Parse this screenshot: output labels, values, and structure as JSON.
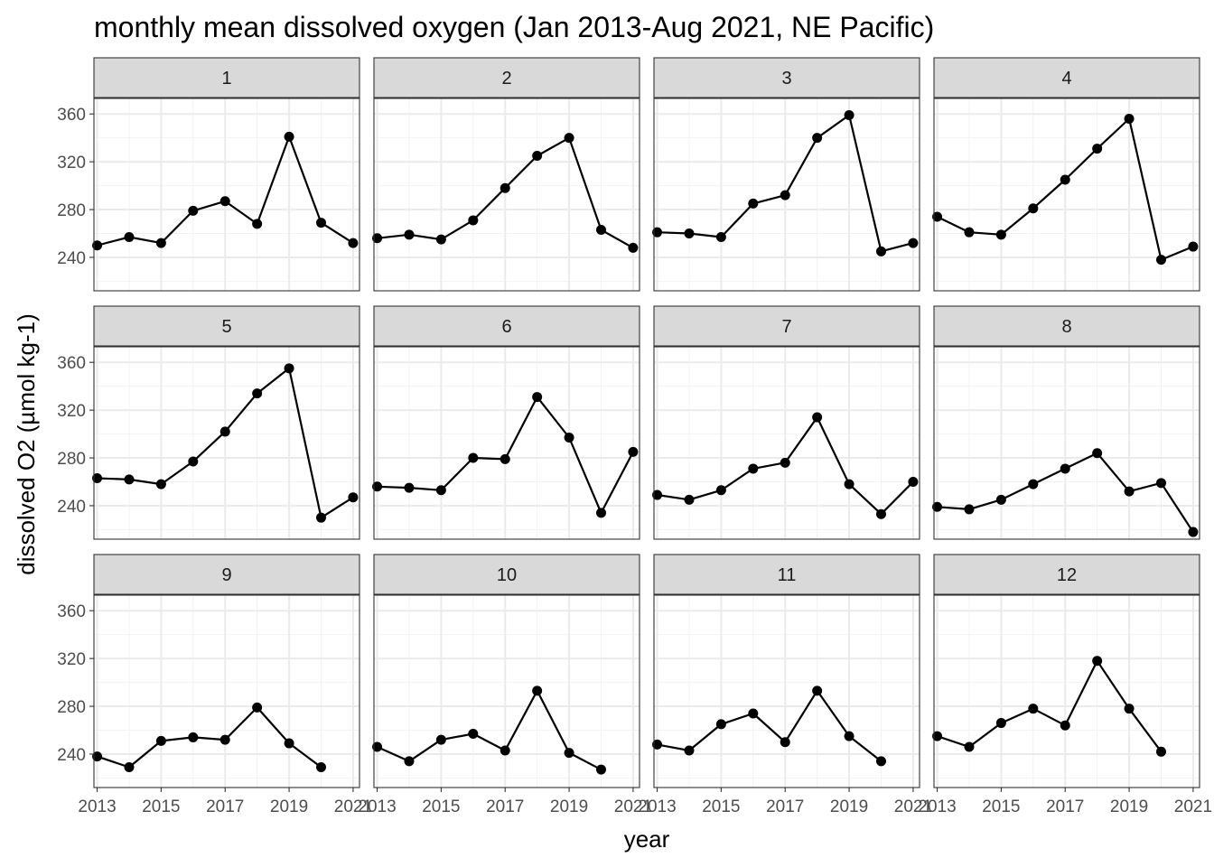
{
  "chart_data": {
    "type": "line",
    "title": "monthly mean dissolved oxygen (Jan 2013-Aug 2021, NE Pacific)",
    "xlabel": "year",
    "ylabel": "dissolved O2 (µmol kg-1)",
    "x_ticks": [
      2013,
      2015,
      2017,
      2019,
      2021
    ],
    "y_ticks": [
      240,
      280,
      320,
      360
    ],
    "xlim": [
      2012.9,
      2021.2
    ],
    "ylim": [
      212,
      373
    ],
    "grid": true,
    "markers": true,
    "color": "#000000",
    "panels": [
      {
        "facet": "1",
        "x": [
          2013,
          2014,
          2015,
          2016,
          2017,
          2018,
          2019,
          2020,
          2021
        ],
        "y": [
          250,
          257,
          252,
          279,
          287,
          268,
          341,
          269,
          252
        ]
      },
      {
        "facet": "2",
        "x": [
          2013,
          2014,
          2015,
          2016,
          2017,
          2018,
          2019,
          2020,
          2021
        ],
        "y": [
          256,
          259,
          255,
          271,
          298,
          325,
          340,
          263,
          248
        ]
      },
      {
        "facet": "3",
        "x": [
          2013,
          2014,
          2015,
          2016,
          2017,
          2018,
          2019,
          2020,
          2021
        ],
        "y": [
          261,
          260,
          257,
          285,
          292,
          340,
          359,
          245,
          252
        ]
      },
      {
        "facet": "4",
        "x": [
          2013,
          2014,
          2015,
          2016,
          2017,
          2018,
          2019,
          2020,
          2021
        ],
        "y": [
          274,
          261,
          259,
          281,
          305,
          331,
          356,
          238,
          249
        ]
      },
      {
        "facet": "5",
        "x": [
          2013,
          2014,
          2015,
          2016,
          2017,
          2018,
          2019,
          2020,
          2021
        ],
        "y": [
          263,
          262,
          258,
          277,
          302,
          334,
          355,
          230,
          247
        ]
      },
      {
        "facet": "6",
        "x": [
          2013,
          2014,
          2015,
          2016,
          2017,
          2018,
          2019,
          2020,
          2021
        ],
        "y": [
          256,
          255,
          253,
          280,
          279,
          331,
          297,
          234,
          285
        ]
      },
      {
        "facet": "7",
        "x": [
          2013,
          2014,
          2015,
          2016,
          2017,
          2018,
          2019,
          2020,
          2021
        ],
        "y": [
          249,
          245,
          253,
          271,
          276,
          314,
          258,
          233,
          260
        ]
      },
      {
        "facet": "8",
        "x": [
          2013,
          2014,
          2015,
          2016,
          2017,
          2018,
          2019,
          2020,
          2021
        ],
        "y": [
          239,
          237,
          245,
          258,
          271,
          284,
          252,
          259,
          218
        ]
      },
      {
        "facet": "9",
        "x": [
          2013,
          2014,
          2015,
          2016,
          2017,
          2018,
          2019,
          2020
        ],
        "y": [
          238,
          229,
          251,
          254,
          252,
          279,
          249,
          229
        ]
      },
      {
        "facet": "10",
        "x": [
          2013,
          2014,
          2015,
          2016,
          2017,
          2018,
          2019,
          2020
        ],
        "y": [
          246,
          234,
          252,
          257,
          243,
          293,
          241,
          227
        ]
      },
      {
        "facet": "11",
        "x": [
          2013,
          2014,
          2015,
          2016,
          2017,
          2018,
          2019,
          2020
        ],
        "y": [
          248,
          243,
          265,
          274,
          250,
          293,
          255,
          234
        ]
      },
      {
        "facet": "12",
        "x": [
          2013,
          2014,
          2015,
          2016,
          2017,
          2018,
          2019,
          2020
        ],
        "y": [
          255,
          246,
          266,
          278,
          264,
          318,
          278,
          242
        ]
      }
    ]
  }
}
